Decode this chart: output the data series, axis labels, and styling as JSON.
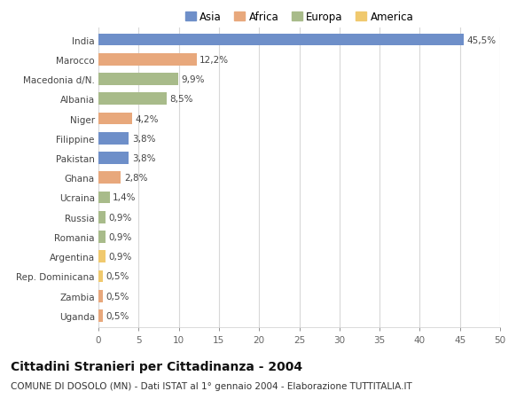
{
  "title": "Cittadini Stranieri per Cittadinanza - 2004",
  "subtitle": "COMUNE DI DOSOLO (MN) - Dati ISTAT al 1° gennaio 2004 - Elaborazione TUTTITALIA.IT",
  "legend_labels": [
    "Asia",
    "Africa",
    "Europa",
    "America"
  ],
  "legend_colors": [
    "#6e8fc9",
    "#e8a87c",
    "#a8bb8a",
    "#f0c96e"
  ],
  "countries": [
    "India",
    "Marocco",
    "Macedonia d/N.",
    "Albania",
    "Niger",
    "Filippine",
    "Pakistan",
    "Ghana",
    "Ucraina",
    "Russia",
    "Romania",
    "Argentina",
    "Rep. Dominicana",
    "Zambia",
    "Uganda"
  ],
  "values": [
    45.5,
    12.2,
    9.9,
    8.5,
    4.2,
    3.8,
    3.8,
    2.8,
    1.4,
    0.9,
    0.9,
    0.9,
    0.5,
    0.5,
    0.5
  ],
  "labels": [
    "45,5%",
    "12,2%",
    "9,9%",
    "8,5%",
    "4,2%",
    "3,8%",
    "3,8%",
    "2,8%",
    "1,4%",
    "0,9%",
    "0,9%",
    "0,9%",
    "0,5%",
    "0,5%",
    "0,5%"
  ],
  "colors": [
    "#6e8fc9",
    "#e8a87c",
    "#a8bb8a",
    "#a8bb8a",
    "#e8a87c",
    "#6e8fc9",
    "#6e8fc9",
    "#e8a87c",
    "#a8bb8a",
    "#a8bb8a",
    "#a8bb8a",
    "#f0c96e",
    "#f0c96e",
    "#e8a87c",
    "#e8a87c"
  ],
  "xlim": [
    0,
    50
  ],
  "xticks": [
    0,
    5,
    10,
    15,
    20,
    25,
    30,
    35,
    40,
    45,
    50
  ],
  "bg_color": "#ffffff",
  "grid_color": "#d8d8d8",
  "bar_height": 0.62,
  "title_fontsize": 10,
  "subtitle_fontsize": 7.5,
  "label_fontsize": 7.5,
  "tick_fontsize": 7.5,
  "legend_fontsize": 8.5
}
